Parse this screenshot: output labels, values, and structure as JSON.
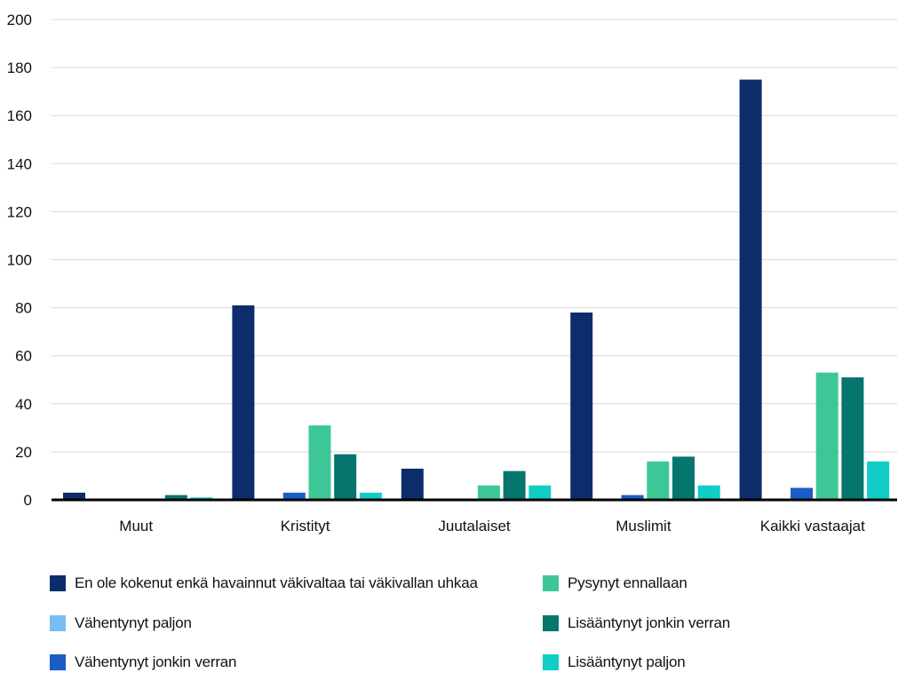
{
  "chart_data": {
    "type": "bar",
    "title": "",
    "xlabel": "",
    "ylabel": "",
    "ylim": [
      0,
      200
    ],
    "yticks": [
      0,
      20,
      40,
      60,
      80,
      100,
      120,
      140,
      160,
      180,
      200
    ],
    "grid": true,
    "legend_position": "bottom",
    "categories": [
      "Muut",
      "Kristityt",
      "Juutalaiset",
      "Muslimit",
      "Kaikki vastaajat"
    ],
    "series": [
      {
        "name": "En ole kokenut enkä havainnut väkivaltaa tai väkivallan uhkaa",
        "color": "#0d2c6b",
        "values": [
          3,
          81,
          13,
          78,
          175
        ]
      },
      {
        "name": "Vähentynyt paljon",
        "color": "#79bdf5",
        "values": [
          0,
          0,
          0,
          0,
          0
        ]
      },
      {
        "name": "Vähentynyt jonkin verran",
        "color": "#1a5cc8",
        "values": [
          0,
          3,
          0,
          2,
          5
        ]
      },
      {
        "name": "Pysynyt ennallaan",
        "color": "#3ec796",
        "values": [
          0,
          31,
          6,
          16,
          53
        ]
      },
      {
        "name": "Lisääntynyt jonkin verran",
        "color": "#05756e",
        "values": [
          2,
          19,
          12,
          18,
          51
        ]
      },
      {
        "name": "Lisääntynyt paljon",
        "color": "#12cdc6",
        "values": [
          1,
          3,
          6,
          6,
          16
        ]
      }
    ]
  }
}
